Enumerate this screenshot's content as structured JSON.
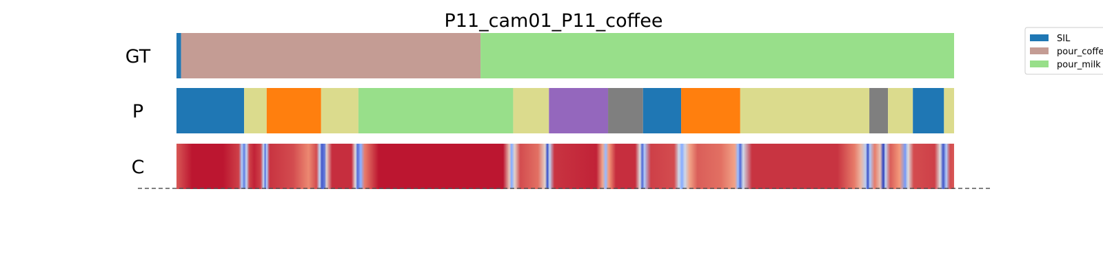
{
  "chart_data": {
    "type": "segmentation-timeline",
    "title": "P11_cam01_P11_coffee",
    "x_unit": "fraction of video",
    "x_range": [
      0,
      1
    ],
    "rows": [
      {
        "label": "GT",
        "segments": [
          {
            "start": 0.0,
            "end": 0.006,
            "class": "SIL"
          },
          {
            "start": 0.006,
            "end": 0.391,
            "class": "pour_coffee"
          },
          {
            "start": 0.391,
            "end": 1.0,
            "class": "pour_milk"
          }
        ]
      },
      {
        "label": "P",
        "segments": [
          {
            "start": 0.0,
            "end": 0.087,
            "color": "#1f77b4"
          },
          {
            "start": 0.087,
            "end": 0.116,
            "color": "#dbdb8d"
          },
          {
            "start": 0.116,
            "end": 0.186,
            "color": "#ff7f0e"
          },
          {
            "start": 0.186,
            "end": 0.234,
            "color": "#dbdb8d"
          },
          {
            "start": 0.234,
            "end": 0.433,
            "color": "#98df8a"
          },
          {
            "start": 0.433,
            "end": 0.479,
            "color": "#dbdb8d"
          },
          {
            "start": 0.479,
            "end": 0.555,
            "color": "#9467bd"
          },
          {
            "start": 0.555,
            "end": 0.6,
            "color": "#7f7f7f"
          },
          {
            "start": 0.6,
            "end": 0.649,
            "color": "#1f77b4"
          },
          {
            "start": 0.649,
            "end": 0.725,
            "color": "#ff7f0e"
          },
          {
            "start": 0.725,
            "end": 0.891,
            "color": "#dbdb8d"
          },
          {
            "start": 0.891,
            "end": 0.915,
            "color": "#7f7f7f"
          },
          {
            "start": 0.915,
            "end": 0.947,
            "color": "#dbdb8d"
          },
          {
            "start": 0.947,
            "end": 0.987,
            "color": "#1f77b4"
          },
          {
            "start": 0.987,
            "end": 1.0,
            "color": "#dbdb8d"
          }
        ]
      },
      {
        "label": "C",
        "colormap": "coolwarm",
        "confidence_points": [
          [
            0.0,
            0.86
          ],
          [
            0.02,
            0.97
          ],
          [
            0.06,
            0.97
          ],
          [
            0.08,
            0.9
          ],
          [
            0.084,
            0.35
          ],
          [
            0.087,
            0.15
          ],
          [
            0.09,
            0.4
          ],
          [
            0.094,
            0.9
          ],
          [
            0.1,
            0.95
          ],
          [
            0.108,
            0.9
          ],
          [
            0.112,
            0.4
          ],
          [
            0.114,
            0.12
          ],
          [
            0.116,
            0.35
          ],
          [
            0.12,
            0.92
          ],
          [
            0.15,
            0.88
          ],
          [
            0.17,
            0.78
          ],
          [
            0.18,
            0.88
          ],
          [
            0.184,
            0.4
          ],
          [
            0.187,
            0.05
          ],
          [
            0.19,
            0.1
          ],
          [
            0.193,
            0.55
          ],
          [
            0.2,
            0.93
          ],
          [
            0.225,
            0.93
          ],
          [
            0.23,
            0.5
          ],
          [
            0.233,
            0.1
          ],
          [
            0.237,
            0.25
          ],
          [
            0.242,
            0.8
          ],
          [
            0.26,
            0.97
          ],
          [
            0.42,
            0.97
          ],
          [
            0.428,
            0.6
          ],
          [
            0.431,
            0.25
          ],
          [
            0.435,
            0.55
          ],
          [
            0.442,
            0.88
          ],
          [
            0.465,
            0.82
          ],
          [
            0.474,
            0.55
          ],
          [
            0.477,
            0.05
          ],
          [
            0.48,
            0.4
          ],
          [
            0.486,
            0.92
          ],
          [
            0.54,
            0.95
          ],
          [
            0.548,
            0.7
          ],
          [
            0.552,
            0.3
          ],
          [
            0.556,
            0.75
          ],
          [
            0.565,
            0.93
          ],
          [
            0.59,
            0.93
          ],
          [
            0.596,
            0.5
          ],
          [
            0.599,
            0.1
          ],
          [
            0.602,
            0.35
          ],
          [
            0.61,
            0.9
          ],
          [
            0.64,
            0.88
          ],
          [
            0.646,
            0.45
          ],
          [
            0.65,
            0.25
          ],
          [
            0.654,
            0.45
          ],
          [
            0.66,
            0.72
          ],
          [
            0.67,
            0.85
          ],
          [
            0.7,
            0.82
          ],
          [
            0.718,
            0.72
          ],
          [
            0.722,
            0.3
          ],
          [
            0.725,
            0.1
          ],
          [
            0.729,
            0.45
          ],
          [
            0.74,
            0.92
          ],
          [
            0.85,
            0.92
          ],
          [
            0.872,
            0.8
          ],
          [
            0.88,
            0.65
          ],
          [
            0.886,
            0.4
          ],
          [
            0.889,
            0.05
          ],
          [
            0.892,
            0.35
          ],
          [
            0.898,
            0.8
          ],
          [
            0.905,
            0.6
          ],
          [
            0.909,
            0.0
          ],
          [
            0.912,
            0.4
          ],
          [
            0.918,
            0.85
          ],
          [
            0.93,
            0.75
          ],
          [
            0.937,
            0.2
          ],
          [
            0.941,
            0.5
          ],
          [
            0.948,
            0.88
          ],
          [
            0.975,
            0.9
          ],
          [
            0.982,
            0.5
          ],
          [
            0.986,
            0.05
          ],
          [
            0.99,
            0.35
          ],
          [
            0.995,
            0.88
          ],
          [
            1.0,
            0.86
          ]
        ]
      }
    ],
    "legend": {
      "position": "top-right",
      "entries": [
        {
          "label": "SIL",
          "color": "#1f77b4"
        },
        {
          "label": "pour_coffee",
          "color": "#c49c94"
        },
        {
          "label": "pour_milk",
          "color": "#98df8a"
        }
      ]
    },
    "baseline": {
      "style": "dashed",
      "color": "#555555"
    }
  }
}
